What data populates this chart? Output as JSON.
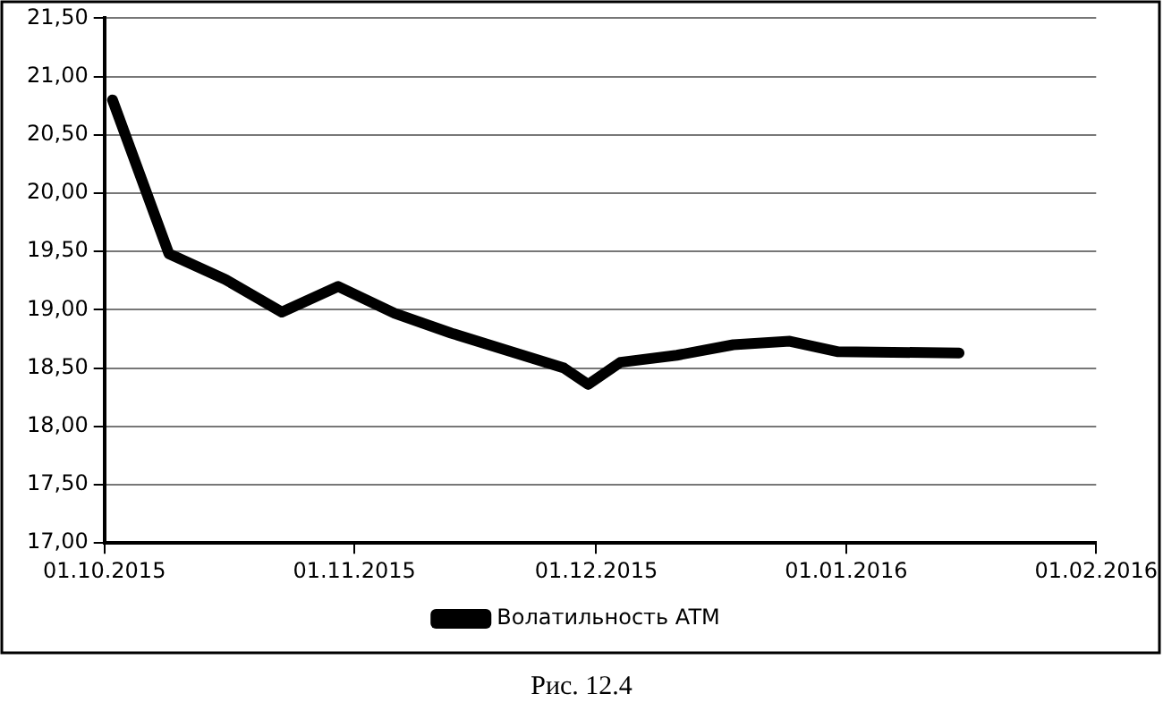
{
  "chart_data": {
    "type": "line",
    "x": [
      "2015-10-02",
      "2015-10-09",
      "2015-10-16",
      "2015-10-23",
      "2015-10-30",
      "2015-11-06",
      "2015-11-13",
      "2015-11-20",
      "2015-11-27",
      "2015-11-30",
      "2015-12-04",
      "2015-12-11",
      "2015-12-18",
      "2015-12-25",
      "2015-12-31",
      "2016-01-15"
    ],
    "series": [
      {
        "name": "Волатильность ATM",
        "color": "#000000",
        "values": [
          20.8,
          19.48,
          19.26,
          18.98,
          19.2,
          18.97,
          18.8,
          18.65,
          18.5,
          18.36,
          18.55,
          18.61,
          18.7,
          18.73,
          18.64,
          18.63
        ]
      }
    ],
    "xlim": [
      "2015-10-01",
      "2016-02-01"
    ],
    "xticks": [
      {
        "value": "2015-10-01",
        "label": "01.10.2015"
      },
      {
        "value": "2015-11-01",
        "label": "01.11.2015"
      },
      {
        "value": "2015-12-01",
        "label": "01.12.2015"
      },
      {
        "value": "2016-01-01",
        "label": "01.01.2016"
      },
      {
        "value": "2016-02-01",
        "label": "01.02.2016"
      }
    ],
    "ylim": [
      17,
      21.5
    ],
    "yticks": [
      {
        "value": 17,
        "label": "17,00"
      },
      {
        "value": 17.5,
        "label": "17,50"
      },
      {
        "value": 18,
        "label": "18,00"
      },
      {
        "value": 18.5,
        "label": "18,50"
      },
      {
        "value": 19,
        "label": "19,00"
      },
      {
        "value": 19.5,
        "label": "19,50"
      },
      {
        "value": 20,
        "label": "20,00"
      },
      {
        "value": 20.5,
        "label": "20,50"
      },
      {
        "value": 21,
        "label": "21,00"
      },
      {
        "value": 21.5,
        "label": "21,50"
      }
    ],
    "grid": "y",
    "legend": "bottom",
    "marker": "none",
    "line_style": "solid",
    "annotations": [
      "Рис. 12.4"
    ]
  }
}
